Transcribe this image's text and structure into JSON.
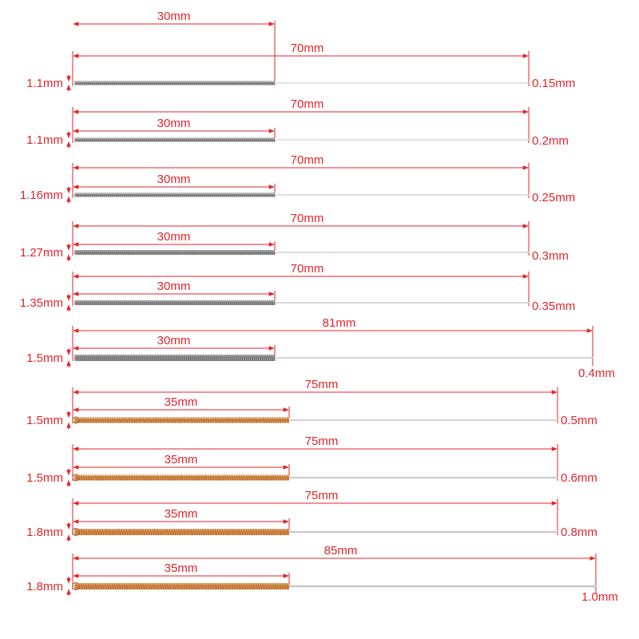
{
  "colors": {
    "dimension": "#e0252b",
    "steel": "#9a9a9a",
    "steel_dark": "#5c5c5c",
    "copper": "#d9914a",
    "copper_dark": "#a8602a",
    "needle": "#c8c8c8"
  },
  "needles": [
    {
      "total_length": "70mm",
      "handle_length": "30mm",
      "handle_diameter": "1.1mm",
      "needle_diameter": "0.15mm",
      "handle_material": "steel"
    },
    {
      "total_length": "70mm",
      "handle_length": "30mm",
      "handle_diameter": "1.1mm",
      "needle_diameter": "0.2mm",
      "handle_material": "steel"
    },
    {
      "total_length": "70mm",
      "handle_length": "30mm",
      "handle_diameter": "1.16mm",
      "needle_diameter": "0.25mm",
      "handle_material": "steel"
    },
    {
      "total_length": "70mm",
      "handle_length": "30mm",
      "handle_diameter": "1.27mm",
      "needle_diameter": "0.3mm",
      "handle_material": "steel"
    },
    {
      "total_length": "70mm",
      "handle_length": "30mm",
      "handle_diameter": "1.35mm",
      "needle_diameter": "0.35mm",
      "handle_material": "steel"
    },
    {
      "total_length": "81mm",
      "handle_length": "30mm",
      "handle_diameter": "1.5mm",
      "needle_diameter": "0.4mm",
      "handle_material": "steel"
    },
    {
      "total_length": "75mm",
      "handle_length": "35mm",
      "handle_diameter": "1.5mm",
      "needle_diameter": "0.5mm",
      "handle_material": "copper"
    },
    {
      "total_length": "75mm",
      "handle_length": "35mm",
      "handle_diameter": "1.5mm",
      "needle_diameter": "0.6mm",
      "handle_material": "copper"
    },
    {
      "total_length": "75mm",
      "handle_length": "35mm",
      "handle_diameter": "1.8mm",
      "needle_diameter": "0.8mm",
      "handle_material": "copper"
    },
    {
      "total_length": "85mm",
      "handle_length": "35mm",
      "handle_diameter": "1.8mm",
      "needle_diameter": "1.0mm",
      "handle_material": "copper"
    }
  ]
}
